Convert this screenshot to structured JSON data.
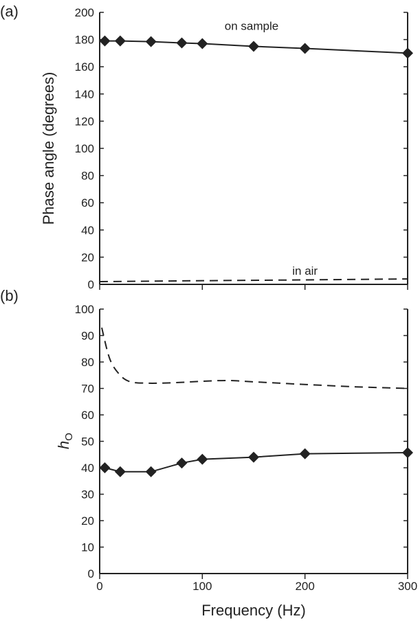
{
  "chart_data": [
    {
      "type": "line",
      "panel_label": "(a)",
      "ylabel": "Phase angle (degrees)",
      "xlabel": "",
      "xlim": [
        0,
        300
      ],
      "ylim": [
        0,
        200
      ],
      "xticks": [
        0,
        100,
        200,
        300
      ],
      "yticks": [
        0,
        20,
        40,
        60,
        80,
        100,
        120,
        140,
        160,
        180,
        200
      ],
      "series": [
        {
          "name": "on sample",
          "style": "solid-diamond",
          "x": [
            5,
            20,
            50,
            80,
            100,
            150,
            200,
            300
          ],
          "y": [
            179,
            179,
            178.5,
            177.5,
            177,
            175,
            173.5,
            170
          ]
        },
        {
          "name": "in air",
          "style": "dashed",
          "x": [
            0,
            100,
            200,
            300
          ],
          "y": [
            2,
            2.7,
            3.3,
            4
          ]
        }
      ],
      "annotations": [
        {
          "text": "on sample",
          "x": 148,
          "y": 187
        },
        {
          "text": "in air",
          "x": 200,
          "y": 7
        }
      ]
    },
    {
      "type": "line",
      "panel_label": "(b)",
      "ylabel": "h",
      "ylabel_sub": "O",
      "xlabel": "Frequency (Hz)",
      "xlim": [
        0,
        300
      ],
      "ylim": [
        0,
        100
      ],
      "xticks": [
        0,
        100,
        200,
        300
      ],
      "yticks": [
        0,
        10,
        20,
        30,
        40,
        50,
        60,
        70,
        80,
        90,
        100
      ],
      "series": [
        {
          "name": "on sample",
          "style": "solid-diamond",
          "x": [
            5,
            20,
            50,
            80,
            100,
            150,
            200,
            300
          ],
          "y": [
            40,
            38.5,
            38.5,
            41.8,
            43.2,
            44,
            45.3,
            45.7
          ]
        },
        {
          "name": "in air",
          "style": "dashed",
          "x": [
            2,
            10,
            20,
            30,
            45,
            60,
            80,
            100,
            125,
            150,
            200,
            250,
            300
          ],
          "y": [
            93,
            81,
            75,
            72.5,
            72,
            72,
            72.3,
            72.7,
            73,
            72.5,
            71.5,
            70.6,
            70
          ]
        }
      ]
    }
  ]
}
